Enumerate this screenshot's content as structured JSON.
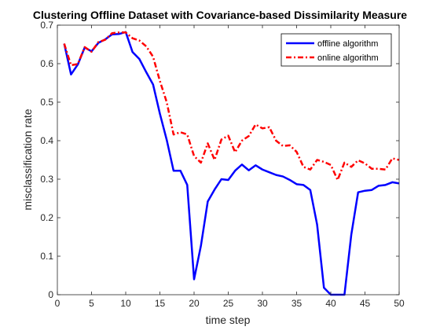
{
  "chart_data": {
    "type": "line",
    "title": "Clustering Offline Dataset with Covariance-based Dissimilarity Measure",
    "xlabel": "time step",
    "ylabel": "misclassification rate",
    "xlim": [
      0,
      50
    ],
    "ylim": [
      0,
      0.7
    ],
    "x_ticks": [
      "0",
      "5",
      "10",
      "15",
      "20",
      "25",
      "30",
      "35",
      "40",
      "45",
      "50"
    ],
    "y_ticks": [
      "0",
      "0.1",
      "0.2",
      "0.3",
      "0.4",
      "0.5",
      "0.6",
      "0.7"
    ],
    "grid": false,
    "legend_position": "top-right",
    "x": [
      1,
      2,
      3,
      4,
      5,
      6,
      7,
      8,
      9,
      10,
      11,
      12,
      13,
      14,
      15,
      16,
      17,
      18,
      19,
      20,
      21,
      22,
      23,
      24,
      25,
      26,
      27,
      28,
      29,
      30,
      31,
      32,
      33,
      34,
      35,
      36,
      37,
      38,
      39,
      40,
      41,
      42,
      43,
      44,
      45,
      46,
      47,
      48,
      49,
      50
    ],
    "series": [
      {
        "name": "offline algorithm",
        "color": "#0000ff",
        "style": "solid",
        "values": [
          0.652,
          0.572,
          0.598,
          0.642,
          0.632,
          0.654,
          0.663,
          0.676,
          0.677,
          0.682,
          0.63,
          0.612,
          0.578,
          0.546,
          0.47,
          0.402,
          0.322,
          0.322,
          0.285,
          0.04,
          0.127,
          0.242,
          0.273,
          0.3,
          0.298,
          0.322,
          0.338,
          0.323,
          0.336,
          0.325,
          0.318,
          0.311,
          0.307,
          0.298,
          0.287,
          0.285,
          0.272,
          0.182,
          0.018,
          0.0,
          0.0,
          0.0,
          0.156,
          0.266,
          0.27,
          0.272,
          0.283,
          0.285,
          0.292,
          0.289
        ]
      },
      {
        "name": "online algorithm",
        "color": "#ff0000",
        "style": "dashdot",
        "values": [
          0.652,
          0.596,
          0.599,
          0.643,
          0.631,
          0.656,
          0.662,
          0.679,
          0.681,
          0.681,
          0.666,
          0.66,
          0.645,
          0.618,
          0.555,
          0.5,
          0.416,
          0.422,
          0.416,
          0.36,
          0.343,
          0.393,
          0.35,
          0.403,
          0.413,
          0.37,
          0.4,
          0.412,
          0.442,
          0.432,
          0.435,
          0.4,
          0.386,
          0.388,
          0.371,
          0.332,
          0.325,
          0.35,
          0.345,
          0.337,
          0.298,
          0.343,
          0.332,
          0.349,
          0.341,
          0.327,
          0.327,
          0.325,
          0.354,
          0.35
        ]
      }
    ]
  }
}
